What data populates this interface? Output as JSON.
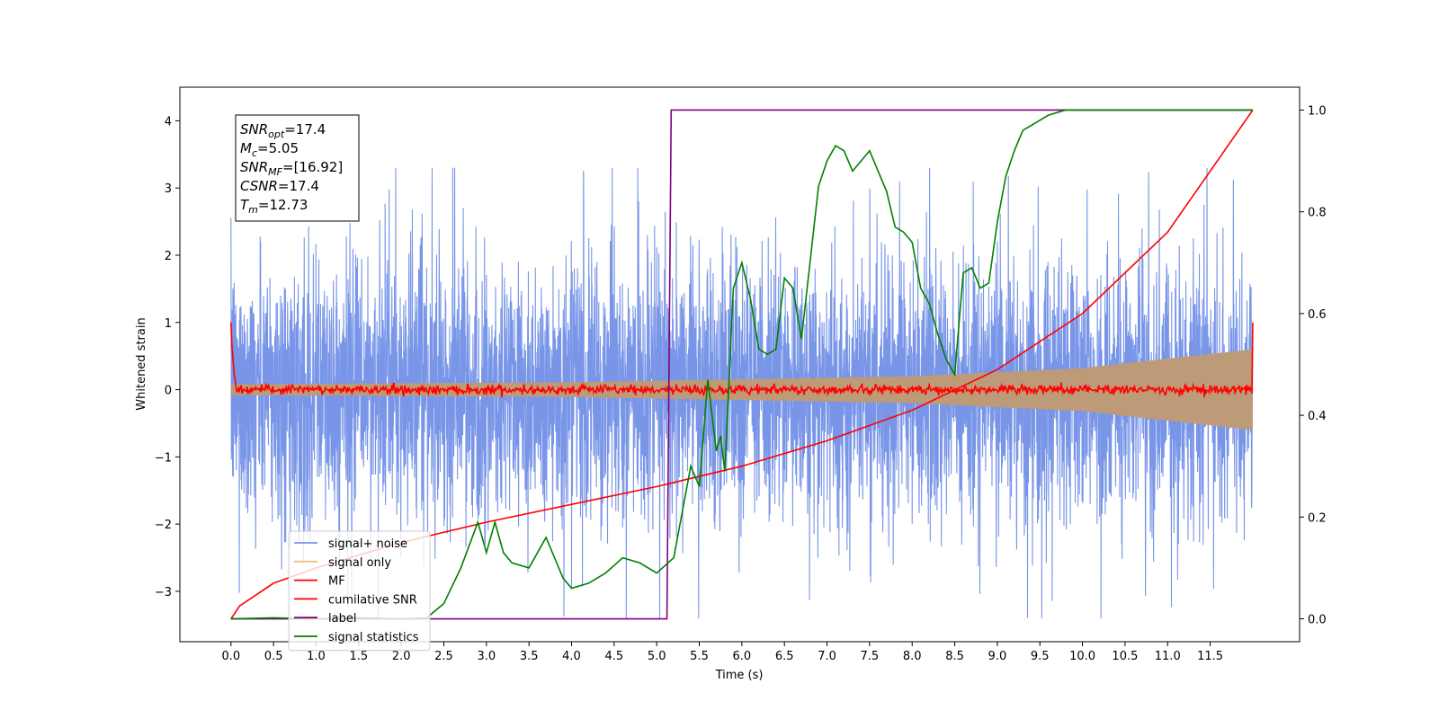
{
  "chart_data": {
    "type": "line",
    "xlabel": "Time (s)",
    "ylabel_left": "Whitened strain",
    "ylabel_right": "",
    "xlim": [
      -0.6,
      12.55
    ],
    "ylim_left": [
      -3.75,
      4.5
    ],
    "ylim_right": [
      -0.045,
      1.045
    ],
    "x_ticks": [
      0.0,
      0.5,
      1.0,
      1.5,
      2.0,
      2.5,
      3.0,
      3.5,
      4.0,
      4.5,
      5.0,
      5.5,
      6.0,
      6.5,
      7.0,
      7.5,
      8.0,
      8.5,
      9.0,
      9.5,
      10.0,
      10.5,
      11.0,
      11.5
    ],
    "x_tick_labels": [
      "0.0",
      "0.5",
      "1.0",
      "1.5",
      "2.0",
      "2.5",
      "3.0",
      "3.5",
      "4.0",
      "4.5",
      "5.0",
      "5.5",
      "6.0",
      "6.5",
      "7.0",
      "7.5",
      "8.0",
      "8.5",
      "9.0",
      "9.5",
      "10.0",
      "10.5",
      "11.0",
      "11.5"
    ],
    "y_ticks_left": [
      -3,
      -2,
      -1,
      0,
      1,
      2,
      3,
      4
    ],
    "y_tick_labels_left": [
      "−3",
      "−2",
      "−1",
      "0",
      "1",
      "2",
      "3",
      "4"
    ],
    "y_ticks_right": [
      0.0,
      0.2,
      0.4,
      0.6,
      0.8,
      1.0
    ],
    "y_tick_labels_right": [
      "0.0",
      "0.2",
      "0.4",
      "0.6",
      "0.8",
      "1.0"
    ],
    "grid": false,
    "legend_position": "lower-left",
    "series": [
      {
        "name": "signal+ noise",
        "color": "#7895e8",
        "axis": "left",
        "x_range": [
          0,
          12
        ],
        "amplitude_range": [
          -3.4,
          3.3
        ]
      },
      {
        "name": "signal only",
        "color": "#f5c07a",
        "axis": "left",
        "x_range": [
          0,
          12
        ],
        "envelope": [
          [
            0.0,
            0.08
          ],
          [
            4.0,
            0.11
          ],
          [
            8.0,
            0.2
          ],
          [
            10.0,
            0.32
          ],
          [
            12.0,
            0.6
          ]
        ]
      },
      {
        "name": "MF",
        "color": "#ff0000",
        "axis": "left",
        "x_range": [
          0,
          12
        ],
        "start_value": 1.0,
        "end_value": 1.0,
        "level": 0.0
      },
      {
        "name": "cumilative SNR",
        "color": "#ff0000",
        "axis": "right",
        "x": [
          0.0,
          0.1,
          0.5,
          1.0,
          2.0,
          3.0,
          4.0,
          5.0,
          6.0,
          7.0,
          8.0,
          9.0,
          10.0,
          11.0,
          12.0
        ],
        "y": [
          0.0,
          0.025,
          0.07,
          0.1,
          0.15,
          0.19,
          0.225,
          0.26,
          0.3,
          0.35,
          0.41,
          0.49,
          0.6,
          0.76,
          1.0
        ]
      },
      {
        "name": "label",
        "color": "#800080",
        "axis": "right",
        "x": [
          0.0,
          5.12,
          5.17,
          12.0
        ],
        "y": [
          0.0,
          0.0,
          1.0,
          1.0
        ]
      },
      {
        "name": "signal statistics",
        "color": "#008000",
        "axis": "right",
        "x": [
          0.0,
          0.5,
          1.0,
          1.5,
          2.0,
          2.3,
          2.5,
          2.7,
          2.9,
          3.0,
          3.1,
          3.2,
          3.3,
          3.5,
          3.7,
          3.9,
          4.0,
          4.2,
          4.4,
          4.6,
          4.8,
          5.0,
          5.2,
          5.4,
          5.5,
          5.6,
          5.7,
          5.75,
          5.8,
          5.9,
          6.0,
          6.1,
          6.2,
          6.3,
          6.4,
          6.5,
          6.6,
          6.7,
          6.8,
          6.9,
          7.0,
          7.1,
          7.2,
          7.3,
          7.4,
          7.5,
          7.6,
          7.7,
          7.8,
          7.9,
          8.0,
          8.1,
          8.2,
          8.3,
          8.4,
          8.5,
          8.6,
          8.7,
          8.8,
          8.9,
          9.0,
          9.1,
          9.2,
          9.3,
          9.4,
          9.5,
          9.6,
          9.8,
          10.0,
          11.0,
          12.0
        ],
        "y": [
          0.0,
          0.002,
          0.0,
          0.002,
          0.0,
          0.002,
          0.03,
          0.1,
          0.19,
          0.13,
          0.19,
          0.13,
          0.11,
          0.1,
          0.16,
          0.08,
          0.06,
          0.07,
          0.09,
          0.12,
          0.11,
          0.09,
          0.12,
          0.3,
          0.26,
          0.47,
          0.33,
          0.36,
          0.29,
          0.65,
          0.7,
          0.63,
          0.53,
          0.52,
          0.53,
          0.67,
          0.65,
          0.55,
          0.7,
          0.85,
          0.9,
          0.93,
          0.92,
          0.88,
          0.9,
          0.92,
          0.88,
          0.84,
          0.77,
          0.76,
          0.74,
          0.65,
          0.62,
          0.56,
          0.51,
          0.48,
          0.68,
          0.69,
          0.65,
          0.66,
          0.78,
          0.87,
          0.92,
          0.96,
          0.97,
          0.98,
          0.99,
          1.0,
          1.0,
          1.0,
          1.0
        ]
      }
    ],
    "annotation": {
      "lines": [
        {
          "var": "SNR",
          "sub": "opt",
          "value": "=17.4"
        },
        {
          "var": "M",
          "sub": "c",
          "value": "=5.05"
        },
        {
          "var": "SNR",
          "sub": "MF",
          "value": "=[16.92]"
        },
        {
          "var": "CSNR",
          "sub": "",
          "value": "=17.4"
        },
        {
          "var": "T",
          "sub": "m",
          "value": "=12.73"
        }
      ]
    }
  }
}
